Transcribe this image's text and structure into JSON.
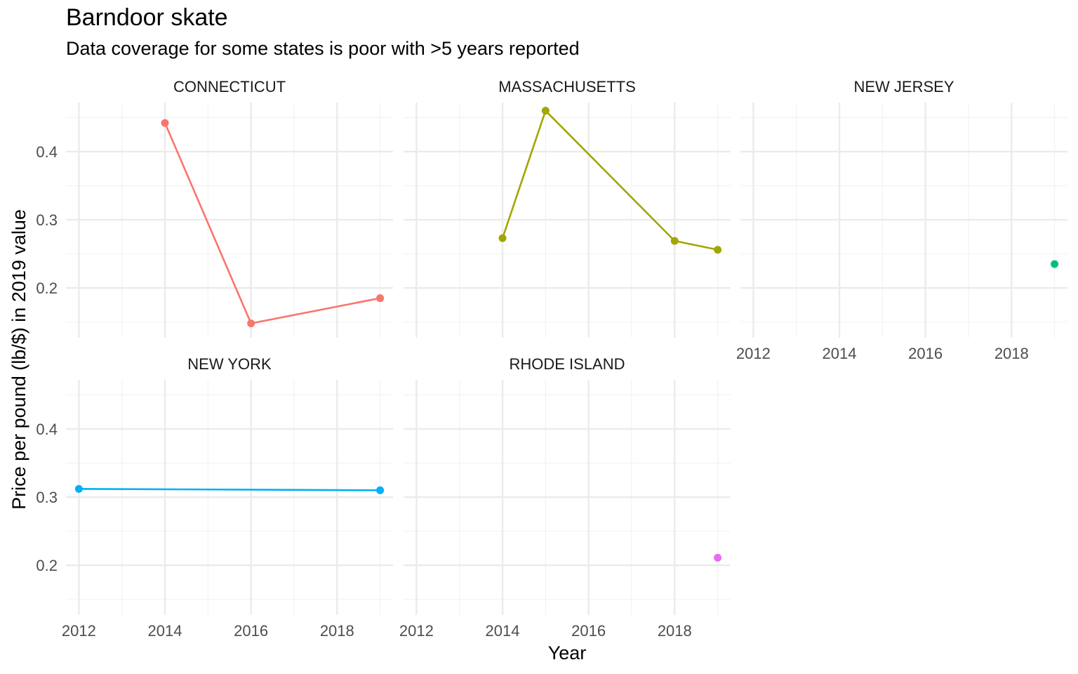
{
  "chart_data": {
    "type": "line",
    "title": "Barndoor skate",
    "subtitle": "Data coverage for some states is poor with >5 years reported",
    "xlabel": "Year",
    "ylabel": "Price per pound (lb/$) in 2019 value",
    "xlim": [
      2011.7,
      2019.3
    ],
    "ylim": [
      0.127,
      0.472
    ],
    "x_ticks": [
      2012,
      2014,
      2016,
      2018
    ],
    "y_ticks": [
      0.2,
      0.3,
      0.4
    ],
    "y_tick_labels": [
      "0.2",
      "0.3",
      "0.4"
    ],
    "grid": true,
    "legend": "none",
    "facets": [
      {
        "name": "CONNECTICUT",
        "color": "#F8766D",
        "x": [
          2014,
          2016,
          2019
        ],
        "y": [
          0.442,
          0.148,
          0.185
        ]
      },
      {
        "name": "MASSACHUSETTS",
        "color": "#A3A500",
        "x": [
          2014,
          2015,
          2018,
          2019
        ],
        "y": [
          0.273,
          0.46,
          0.269,
          0.256
        ]
      },
      {
        "name": "NEW JERSEY",
        "color": "#00BF7D",
        "x": [
          2019
        ],
        "y": [
          0.235
        ]
      },
      {
        "name": "NEW YORK",
        "color": "#00B0F6",
        "x": [
          2012,
          2019
        ],
        "y": [
          0.312,
          0.31
        ]
      },
      {
        "name": "RHODE ISLAND",
        "color": "#E76BF3",
        "x": [
          2019
        ],
        "y": [
          0.211
        ]
      }
    ]
  }
}
